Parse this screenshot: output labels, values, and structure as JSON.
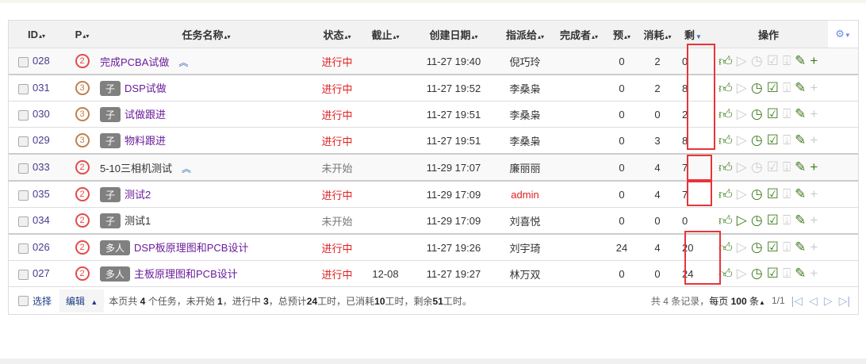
{
  "columns": [
    "ID",
    "P",
    "任务名称",
    "状态",
    "截止",
    "创建日期",
    "指派给",
    "完成者",
    "预",
    "消耗",
    "剩",
    "操作"
  ],
  "rows": [
    {
      "id": "028",
      "p": "2",
      "tag": "",
      "name": "完成PCBA试做",
      "parent": true,
      "status": "进行中",
      "deadline": "",
      "created": "11-27 19:40",
      "assigned": "倪巧玲",
      "finisher": "",
      "est": "0",
      "used": "2",
      "left": "0",
      "start": false,
      "clock": false,
      "check": false,
      "plus": true
    },
    {
      "id": "031",
      "p": "3",
      "tag": "子",
      "name": "DSP试做",
      "status": "进行中",
      "deadline": "",
      "created": "11-27 19:52",
      "assigned": "李桑枭",
      "finisher": "",
      "est": "0",
      "used": "2",
      "left": "8",
      "start": false,
      "clock": true,
      "check": true,
      "plus": false
    },
    {
      "id": "030",
      "p": "3",
      "tag": "子",
      "name": "试做跟进",
      "status": "进行中",
      "deadline": "",
      "created": "11-27 19:51",
      "assigned": "李桑枭",
      "finisher": "",
      "est": "0",
      "used": "0",
      "left": "2",
      "start": false,
      "clock": true,
      "check": true,
      "plus": false
    },
    {
      "id": "029",
      "p": "3",
      "tag": "子",
      "name": "物料跟进",
      "status": "进行中",
      "deadline": "",
      "created": "11-27 19:51",
      "assigned": "李桑枭",
      "finisher": "",
      "est": "0",
      "used": "3",
      "left": "8",
      "start": false,
      "clock": true,
      "check": true,
      "plus": false
    },
    {
      "id": "033",
      "p": "2",
      "tag": "",
      "name": "5-10三相机测试",
      "parent": true,
      "status": "未开始",
      "deadline": "",
      "created": "11-29 17:07",
      "assigned": "廉丽丽",
      "finisher": "",
      "est": "0",
      "used": "4",
      "left": "7",
      "start": false,
      "clock": false,
      "check": false,
      "plus": true
    },
    {
      "id": "035",
      "p": "2",
      "tag": "子",
      "name": "测试2",
      "status": "进行中",
      "deadline": "",
      "created": "11-29 17:09",
      "assigned": "admin",
      "finisher": "",
      "est": "0",
      "used": "4",
      "left": "7",
      "start": false,
      "clock": true,
      "check": true,
      "plus": false
    },
    {
      "id": "034",
      "p": "2",
      "tag": "子",
      "name": "测试1",
      "status": "未开始",
      "deadline": "",
      "created": "11-29 17:09",
      "assigned": "刘喜悦",
      "finisher": "",
      "est": "0",
      "used": "0",
      "left": "0",
      "start": true,
      "clock": true,
      "check": true,
      "plus": false
    },
    {
      "id": "026",
      "p": "2",
      "tag": "多人",
      "name": "DSP板原理图和PCB设计",
      "status": "进行中",
      "deadline": "",
      "created": "11-27 19:26",
      "assigned": "刘宇琦",
      "finisher": "",
      "est": "24",
      "used": "4",
      "left": "20",
      "start": false,
      "clock": true,
      "check": true,
      "plus": false
    },
    {
      "id": "027",
      "p": "2",
      "tag": "多人",
      "name": "主板原理图和PCB设计",
      "status": "进行中",
      "deadline": "12-08",
      "created": "11-27 19:27",
      "assigned": "林万双",
      "finisher": "",
      "est": "0",
      "used": "0",
      "left": "24",
      "start": false,
      "clock": true,
      "check": true,
      "plus": false
    }
  ],
  "footer": {
    "select": "选择",
    "edit": "编辑",
    "s1": "本页共",
    "tasks": "4",
    "s2": "个任务，未开始",
    "notstarted": "1",
    "s3": "，进行中",
    "inprogress": "3",
    "s4": "，总预计",
    "est": "24",
    "s5": "工时，已消耗",
    "used": "10",
    "s6": "工时，剩余",
    "left": "51",
    "s7": "工时。",
    "pager": {
      "total": "共 4 条记录，",
      "per_label": "每页",
      "per": "100",
      "unit": "条",
      "page": "1/1"
    }
  },
  "colors": {
    "highlight": "#e8343a",
    "in_progress": "#e02020",
    "accent": "#3c7a1a"
  }
}
